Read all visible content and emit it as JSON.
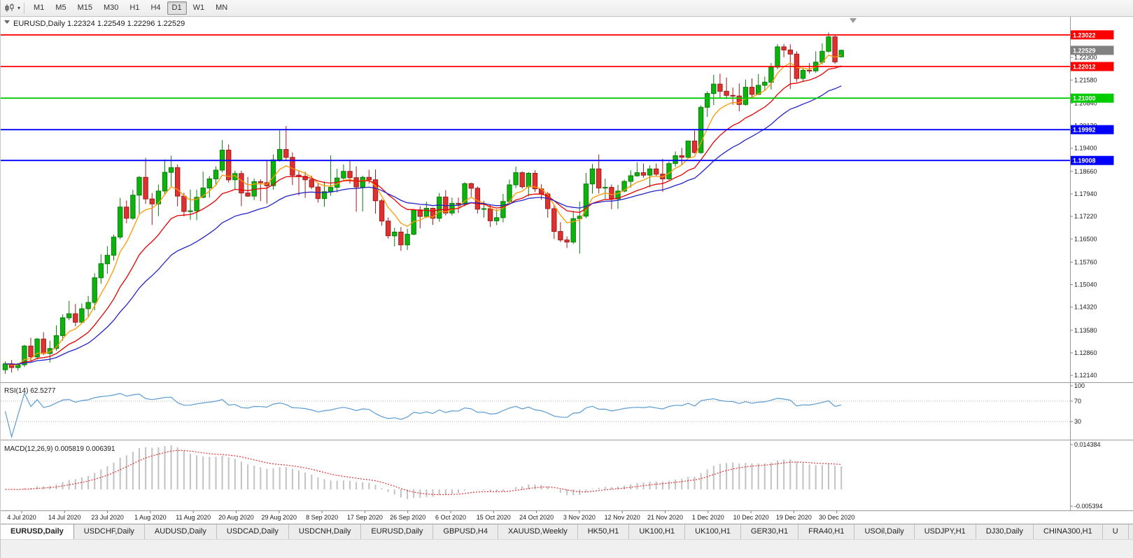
{
  "toolbar": {
    "chart_icon": "candlestick-chart-icon",
    "caret": "▾",
    "timeframes": [
      "M1",
      "M5",
      "M15",
      "M30",
      "H1",
      "H4",
      "D1",
      "W1",
      "MN"
    ],
    "active_timeframe": "D1"
  },
  "chart": {
    "title_line": "EURUSD,Daily 1.22324 1.22549 1.22296 1.22529",
    "rsi": {
      "label": "RSI(14) 62.5277"
    },
    "macd": {
      "label": "MACD(12,26,9) 0.005819 0.006391"
    }
  },
  "chart_data": {
    "type": "candlestick",
    "symbol": "EURUSD",
    "timeframe": "Daily",
    "ohlc_current": {
      "open": 1.22324,
      "high": 1.22549,
      "low": 1.22296,
      "close": 1.22529
    },
    "ylim": [
      1.1192,
      1.236
    ],
    "y_ticks": [
      "1.22300",
      "1.21580",
      "1.20840",
      "1.20120",
      "1.19400",
      "1.18660",
      "1.17940",
      "1.17220",
      "1.16500",
      "1.15760",
      "1.15040",
      "1.14320",
      "1.13580",
      "1.12860",
      "1.12140"
    ],
    "x_labels": [
      "4 Jul 2020",
      "14 Jul 2020",
      "23 Jul 2020",
      "1 Aug 2020",
      "11 Aug 2020",
      "20 Aug 2020",
      "29 Aug 2020",
      "8 Sep 2020",
      "17 Sep 2020",
      "26 Sep 2020",
      "6 Oct 2020",
      "15 Oct 2020",
      "24 Oct 2020",
      "3 Nov 2020",
      "12 Nov 2020",
      "21 Nov 2020",
      "1 Dec 2020",
      "10 Dec 2020",
      "19 Dec 2020",
      "30 Dec 2020"
    ],
    "hlines": [
      {
        "value": 1.23022,
        "label": "1.23022",
        "color": "#ff0000"
      },
      {
        "value": 1.22012,
        "label": "1.22012",
        "color": "#ff0000"
      },
      {
        "value": 1.21,
        "label": "1.21000",
        "color": "#00cc00"
      },
      {
        "value": 1.19992,
        "label": "1.19992",
        "color": "#0000ff"
      },
      {
        "value": 1.19008,
        "label": "1.19008",
        "color": "#0000ff"
      }
    ],
    "current_price": {
      "value": 1.22529,
      "label": "1.22529",
      "color": "#808080"
    },
    "moving_averages": [
      {
        "name": "fast",
        "period": 6,
        "type": "ema",
        "color": "#ff9900"
      },
      {
        "name": "medium",
        "period": 14,
        "type": "ema",
        "color": "#e60000"
      },
      {
        "name": "slow",
        "period": 26,
        "type": "ema",
        "color": "#2323c8"
      }
    ],
    "rsi": {
      "period": 14,
      "current": 62.5277,
      "color": "#5a9bd5",
      "levels": [
        70,
        30
      ],
      "scale_labels": [
        "100",
        "70",
        "30"
      ]
    },
    "macd": {
      "fast": 12,
      "slow": 26,
      "signal_period": 9,
      "current": 0.005819,
      "current_signal": 0.006391,
      "scale_max": 0.014384,
      "scale_min": -0.005394,
      "histogram_color": "#c2c2c2",
      "signal_color": "#e03030"
    },
    "colors": {
      "bull": "#0cb30c",
      "bull_edge": "#0a7d0a",
      "bear": "#e03030",
      "bear_edge": "#9d1c1c",
      "background": "#ffffff"
    },
    "candles": [
      [
        1.1232,
        1.1259,
        1.1219,
        1.1251
      ],
      [
        1.1251,
        1.1263,
        1.1223,
        1.1239
      ],
      [
        1.1239,
        1.1254,
        1.1229,
        1.1248
      ],
      [
        1.1248,
        1.1312,
        1.1241,
        1.1308
      ],
      [
        1.1308,
        1.1334,
        1.1259,
        1.1273
      ],
      [
        1.1273,
        1.1334,
        1.1265,
        1.133
      ],
      [
        1.133,
        1.1352,
        1.1279,
        1.1284
      ],
      [
        1.1284,
        1.1325,
        1.1255,
        1.13
      ],
      [
        1.13,
        1.1374,
        1.1293,
        1.1341
      ],
      [
        1.1341,
        1.1409,
        1.1325,
        1.1398
      ],
      [
        1.1398,
        1.1452,
        1.139,
        1.1411
      ],
      [
        1.1411,
        1.1442,
        1.1371,
        1.1384
      ],
      [
        1.1384,
        1.1444,
        1.1379,
        1.1427
      ],
      [
        1.1427,
        1.1468,
        1.1402,
        1.1447
      ],
      [
        1.1447,
        1.154,
        1.1422,
        1.1526
      ],
      [
        1.1526,
        1.1601,
        1.1507,
        1.1571
      ],
      [
        1.1571,
        1.1627,
        1.1539,
        1.1598
      ],
      [
        1.1598,
        1.1664,
        1.1581,
        1.1656
      ],
      [
        1.1656,
        1.1781,
        1.1649,
        1.1752
      ],
      [
        1.1752,
        1.1773,
        1.17,
        1.1716
      ],
      [
        1.1716,
        1.1807,
        1.1711,
        1.179
      ],
      [
        1.179,
        1.1851,
        1.1732,
        1.1847
      ],
      [
        1.1847,
        1.1909,
        1.1762,
        1.1778
      ],
      [
        1.1778,
        1.1797,
        1.1695,
        1.1762
      ],
      [
        1.1762,
        1.1824,
        1.1723,
        1.1803
      ],
      [
        1.1803,
        1.1904,
        1.1791,
        1.1863
      ],
      [
        1.1863,
        1.1916,
        1.1817,
        1.1878
      ],
      [
        1.1878,
        1.1888,
        1.1754,
        1.1787
      ],
      [
        1.1787,
        1.1798,
        1.1722,
        1.1738
      ],
      [
        1.1738,
        1.1808,
        1.1711,
        1.174
      ],
      [
        1.174,
        1.1807,
        1.171,
        1.1783
      ],
      [
        1.1783,
        1.1865,
        1.178,
        1.1813
      ],
      [
        1.1813,
        1.1851,
        1.1782,
        1.1842
      ],
      [
        1.1842,
        1.1882,
        1.1824,
        1.187
      ],
      [
        1.187,
        1.1966,
        1.1863,
        1.1934
      ],
      [
        1.1934,
        1.1952,
        1.183,
        1.1839
      ],
      [
        1.1839,
        1.1868,
        1.1807,
        1.1859
      ],
      [
        1.1859,
        1.1868,
        1.1755,
        1.1797
      ],
      [
        1.1797,
        1.1848,
        1.1784,
        1.1787
      ],
      [
        1.1787,
        1.1843,
        1.1774,
        1.1833
      ],
      [
        1.1833,
        1.1841,
        1.1771,
        1.183
      ],
      [
        1.183,
        1.19,
        1.1763,
        1.182
      ],
      [
        1.182,
        1.192,
        1.1808,
        1.1903
      ],
      [
        1.1903,
        1.1997,
        1.1897,
        1.1936
      ],
      [
        1.1936,
        1.2011,
        1.1899,
        1.1911
      ],
      [
        1.1911,
        1.1927,
        1.1822,
        1.1854
      ],
      [
        1.1854,
        1.1868,
        1.1789,
        1.185
      ],
      [
        1.185,
        1.1865,
        1.1781,
        1.1839
      ],
      [
        1.1839,
        1.1852,
        1.1809,
        1.1816
      ],
      [
        1.1816,
        1.1827,
        1.1766,
        1.1779
      ],
      [
        1.1779,
        1.1834,
        1.1753,
        1.1801
      ],
      [
        1.1801,
        1.1917,
        1.1788,
        1.1815
      ],
      [
        1.1815,
        1.1874,
        1.1799,
        1.1845
      ],
      [
        1.1845,
        1.1888,
        1.1839,
        1.1866
      ],
      [
        1.1866,
        1.19,
        1.1827,
        1.1846
      ],
      [
        1.1846,
        1.1882,
        1.1737,
        1.1816
      ],
      [
        1.1816,
        1.1852,
        1.1738,
        1.1847
      ],
      [
        1.1847,
        1.1871,
        1.1827,
        1.1839
      ],
      [
        1.1839,
        1.1872,
        1.1731,
        1.1772
      ],
      [
        1.1772,
        1.1778,
        1.1692,
        1.1707
      ],
      [
        1.1707,
        1.1719,
        1.1651,
        1.166
      ],
      [
        1.166,
        1.1686,
        1.1626,
        1.1672
      ],
      [
        1.1672,
        1.1688,
        1.1612,
        1.1631
      ],
      [
        1.1631,
        1.1683,
        1.1615,
        1.1665
      ],
      [
        1.1665,
        1.1745,
        1.1662,
        1.1743
      ],
      [
        1.1743,
        1.1755,
        1.1684,
        1.1722
      ],
      [
        1.1722,
        1.1769,
        1.1717,
        1.1748
      ],
      [
        1.1748,
        1.175,
        1.1695,
        1.1716
      ],
      [
        1.1716,
        1.1797,
        1.1705,
        1.1784
      ],
      [
        1.1784,
        1.1806,
        1.1725,
        1.1733
      ],
      [
        1.1733,
        1.1782,
        1.1725,
        1.1764
      ],
      [
        1.1764,
        1.1782,
        1.1733,
        1.1761
      ],
      [
        1.1761,
        1.1831,
        1.1754,
        1.1827
      ],
      [
        1.1827,
        1.183,
        1.1785,
        1.1812
      ],
      [
        1.1812,
        1.1818,
        1.1731,
        1.1745
      ],
      [
        1.1745,
        1.1772,
        1.1718,
        1.1747
      ],
      [
        1.1747,
        1.1758,
        1.1688,
        1.1708
      ],
      [
        1.1708,
        1.1745,
        1.1694,
        1.1718
      ],
      [
        1.1718,
        1.1794,
        1.1703,
        1.177
      ],
      [
        1.177,
        1.184,
        1.176,
        1.1823
      ],
      [
        1.1823,
        1.1881,
        1.1813,
        1.1862
      ],
      [
        1.1862,
        1.1866,
        1.1811,
        1.1817
      ],
      [
        1.1817,
        1.1864,
        1.1786,
        1.186
      ],
      [
        1.186,
        1.187,
        1.18,
        1.181
      ],
      [
        1.181,
        1.1825,
        1.1775,
        1.1794
      ],
      [
        1.1794,
        1.18,
        1.1718,
        1.1747
      ],
      [
        1.1747,
        1.1759,
        1.165,
        1.1674
      ],
      [
        1.1674,
        1.1704,
        1.164,
        1.1647
      ],
      [
        1.1647,
        1.1658,
        1.1621,
        1.164
      ],
      [
        1.164,
        1.174,
        1.1634,
        1.1715
      ],
      [
        1.1715,
        1.177,
        1.1603,
        1.1723
      ],
      [
        1.1723,
        1.1861,
        1.1716,
        1.1826
      ],
      [
        1.1826,
        1.189,
        1.1795,
        1.1874
      ],
      [
        1.1874,
        1.192,
        1.1795,
        1.1813
      ],
      [
        1.1813,
        1.1843,
        1.1779,
        1.1815
      ],
      [
        1.1815,
        1.1824,
        1.1745,
        1.1778
      ],
      [
        1.1778,
        1.1823,
        1.1746,
        1.1803
      ],
      [
        1.1803,
        1.184,
        1.1799,
        1.1834
      ],
      [
        1.1834,
        1.1869,
        1.1814,
        1.1852
      ],
      [
        1.1852,
        1.1895,
        1.1849,
        1.1862
      ],
      [
        1.1862,
        1.1891,
        1.1846,
        1.1854
      ],
      [
        1.1854,
        1.1885,
        1.1815,
        1.1874
      ],
      [
        1.1874,
        1.1891,
        1.1849,
        1.1857
      ],
      [
        1.1857,
        1.1906,
        1.18,
        1.1842
      ],
      [
        1.1842,
        1.1897,
        1.1838,
        1.1891
      ],
      [
        1.1891,
        1.193,
        1.1881,
        1.1916
      ],
      [
        1.1916,
        1.1941,
        1.1886,
        1.1911
      ],
      [
        1.1911,
        1.1964,
        1.1907,
        1.1963
      ],
      [
        1.1963,
        1.1997,
        1.1923,
        1.1926
      ],
      [
        1.1926,
        1.2077,
        1.1922,
        1.2071
      ],
      [
        1.2071,
        1.2122,
        1.204,
        1.2115
      ],
      [
        1.2115,
        1.2175,
        1.2078,
        1.2145
      ],
      [
        1.2145,
        1.2178,
        1.2099,
        1.2122
      ],
      [
        1.2122,
        1.2166,
        1.2097,
        1.2109
      ],
      [
        1.2109,
        1.2134,
        1.2079,
        1.2107
      ],
      [
        1.2107,
        1.2147,
        1.2058,
        1.208
      ],
      [
        1.208,
        1.2159,
        1.2076,
        1.2135
      ],
      [
        1.2135,
        1.2163,
        1.2103,
        1.2112
      ],
      [
        1.2112,
        1.2177,
        1.211,
        1.2141
      ],
      [
        1.2141,
        1.2169,
        1.2123,
        1.2151
      ],
      [
        1.2151,
        1.2212,
        1.2127,
        1.2199
      ],
      [
        1.2199,
        1.2273,
        1.2192,
        1.2264
      ],
      [
        1.2264,
        1.2273,
        1.2231,
        1.2254
      ],
      [
        1.2254,
        1.2272,
        1.2129,
        1.2241
      ],
      [
        1.2241,
        1.225,
        1.2151,
        1.2163
      ],
      [
        1.2163,
        1.2197,
        1.2154,
        1.2189
      ],
      [
        1.2189,
        1.2212,
        1.2178,
        1.2187
      ],
      [
        1.2187,
        1.225,
        1.2181,
        1.2215
      ],
      [
        1.2215,
        1.2275,
        1.2208,
        1.225
      ],
      [
        1.225,
        1.231,
        1.2245,
        1.2296
      ],
      [
        1.2296,
        1.2304,
        1.2209,
        1.2216
      ],
      [
        1.22324,
        1.22549,
        1.22296,
        1.22529
      ]
    ]
  },
  "window_tabs": [
    {
      "label": "EURUSD,Daily",
      "active": true
    },
    {
      "label": "USDCHF,Daily"
    },
    {
      "label": "AUDUSD,Daily"
    },
    {
      "label": "USDCAD,Daily"
    },
    {
      "label": "USDCNH,Daily"
    },
    {
      "label": "EURUSD,Daily"
    },
    {
      "label": "GBPUSD,H4"
    },
    {
      "label": "XAUUSD,Weekly"
    },
    {
      "label": "HK50,H1"
    },
    {
      "label": "UK100,H1"
    },
    {
      "label": "UK100,H1"
    },
    {
      "label": "GER30,H1"
    },
    {
      "label": "FRA40,H1"
    },
    {
      "label": "USOil,Daily"
    },
    {
      "label": "USDJPY,H1"
    },
    {
      "label": "DJ30,Daily"
    },
    {
      "label": "CHINA300,H1"
    },
    {
      "label": "U"
    }
  ]
}
